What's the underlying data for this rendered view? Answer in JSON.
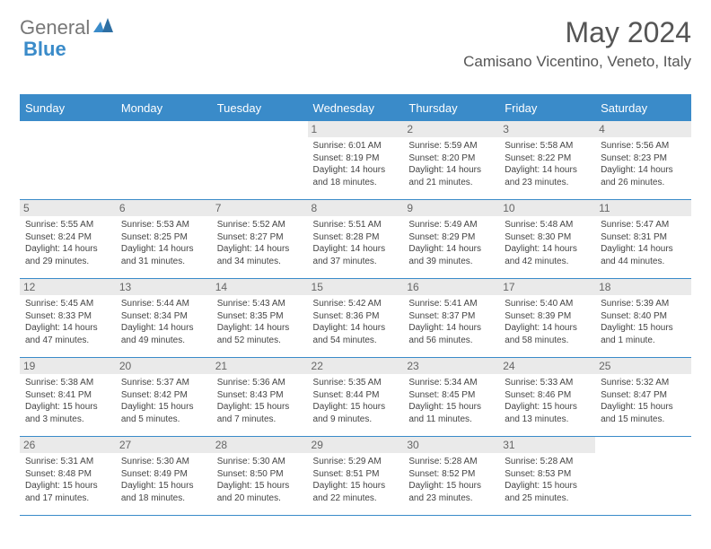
{
  "logo": {
    "part1": "General",
    "part2": "Blue",
    "icon_color": "#3a8bc9"
  },
  "title": "May 2024",
  "location": "Camisano Vicentino, Veneto, Italy",
  "colors": {
    "header_bg": "#3a8bc9",
    "header_text": "#ffffff",
    "border": "#3a8bc9",
    "daynum_bg": "#eaeaea",
    "daynum_text": "#666666",
    "body_text": "#444444",
    "title_text": "#555555"
  },
  "typography": {
    "title_fontsize": 32,
    "location_fontsize": 17,
    "header_fontsize": 13,
    "daynum_fontsize": 12,
    "cell_fontsize": 10
  },
  "weekdays": [
    "Sunday",
    "Monday",
    "Tuesday",
    "Wednesday",
    "Thursday",
    "Friday",
    "Saturday"
  ],
  "weeks": [
    [
      null,
      null,
      null,
      {
        "n": "1",
        "sr": "6:01 AM",
        "ss": "8:19 PM",
        "dl": "14 hours and 18 minutes."
      },
      {
        "n": "2",
        "sr": "5:59 AM",
        "ss": "8:20 PM",
        "dl": "14 hours and 21 minutes."
      },
      {
        "n": "3",
        "sr": "5:58 AM",
        "ss": "8:22 PM",
        "dl": "14 hours and 23 minutes."
      },
      {
        "n": "4",
        "sr": "5:56 AM",
        "ss": "8:23 PM",
        "dl": "14 hours and 26 minutes."
      }
    ],
    [
      {
        "n": "5",
        "sr": "5:55 AM",
        "ss": "8:24 PM",
        "dl": "14 hours and 29 minutes."
      },
      {
        "n": "6",
        "sr": "5:53 AM",
        "ss": "8:25 PM",
        "dl": "14 hours and 31 minutes."
      },
      {
        "n": "7",
        "sr": "5:52 AM",
        "ss": "8:27 PM",
        "dl": "14 hours and 34 minutes."
      },
      {
        "n": "8",
        "sr": "5:51 AM",
        "ss": "8:28 PM",
        "dl": "14 hours and 37 minutes."
      },
      {
        "n": "9",
        "sr": "5:49 AM",
        "ss": "8:29 PM",
        "dl": "14 hours and 39 minutes."
      },
      {
        "n": "10",
        "sr": "5:48 AM",
        "ss": "8:30 PM",
        "dl": "14 hours and 42 minutes."
      },
      {
        "n": "11",
        "sr": "5:47 AM",
        "ss": "8:31 PM",
        "dl": "14 hours and 44 minutes."
      }
    ],
    [
      {
        "n": "12",
        "sr": "5:45 AM",
        "ss": "8:33 PM",
        "dl": "14 hours and 47 minutes."
      },
      {
        "n": "13",
        "sr": "5:44 AM",
        "ss": "8:34 PM",
        "dl": "14 hours and 49 minutes."
      },
      {
        "n": "14",
        "sr": "5:43 AM",
        "ss": "8:35 PM",
        "dl": "14 hours and 52 minutes."
      },
      {
        "n": "15",
        "sr": "5:42 AM",
        "ss": "8:36 PM",
        "dl": "14 hours and 54 minutes."
      },
      {
        "n": "16",
        "sr": "5:41 AM",
        "ss": "8:37 PM",
        "dl": "14 hours and 56 minutes."
      },
      {
        "n": "17",
        "sr": "5:40 AM",
        "ss": "8:39 PM",
        "dl": "14 hours and 58 minutes."
      },
      {
        "n": "18",
        "sr": "5:39 AM",
        "ss": "8:40 PM",
        "dl": "15 hours and 1 minute."
      }
    ],
    [
      {
        "n": "19",
        "sr": "5:38 AM",
        "ss": "8:41 PM",
        "dl": "15 hours and 3 minutes."
      },
      {
        "n": "20",
        "sr": "5:37 AM",
        "ss": "8:42 PM",
        "dl": "15 hours and 5 minutes."
      },
      {
        "n": "21",
        "sr": "5:36 AM",
        "ss": "8:43 PM",
        "dl": "15 hours and 7 minutes."
      },
      {
        "n": "22",
        "sr": "5:35 AM",
        "ss": "8:44 PM",
        "dl": "15 hours and 9 minutes."
      },
      {
        "n": "23",
        "sr": "5:34 AM",
        "ss": "8:45 PM",
        "dl": "15 hours and 11 minutes."
      },
      {
        "n": "24",
        "sr": "5:33 AM",
        "ss": "8:46 PM",
        "dl": "15 hours and 13 minutes."
      },
      {
        "n": "25",
        "sr": "5:32 AM",
        "ss": "8:47 PM",
        "dl": "15 hours and 15 minutes."
      }
    ],
    [
      {
        "n": "26",
        "sr": "5:31 AM",
        "ss": "8:48 PM",
        "dl": "15 hours and 17 minutes."
      },
      {
        "n": "27",
        "sr": "5:30 AM",
        "ss": "8:49 PM",
        "dl": "15 hours and 18 minutes."
      },
      {
        "n": "28",
        "sr": "5:30 AM",
        "ss": "8:50 PM",
        "dl": "15 hours and 20 minutes."
      },
      {
        "n": "29",
        "sr": "5:29 AM",
        "ss": "8:51 PM",
        "dl": "15 hours and 22 minutes."
      },
      {
        "n": "30",
        "sr": "5:28 AM",
        "ss": "8:52 PM",
        "dl": "15 hours and 23 minutes."
      },
      {
        "n": "31",
        "sr": "5:28 AM",
        "ss": "8:53 PM",
        "dl": "15 hours and 25 minutes."
      },
      null
    ]
  ],
  "labels": {
    "sunrise": "Sunrise:",
    "sunset": "Sunset:",
    "daylight": "Daylight:"
  }
}
